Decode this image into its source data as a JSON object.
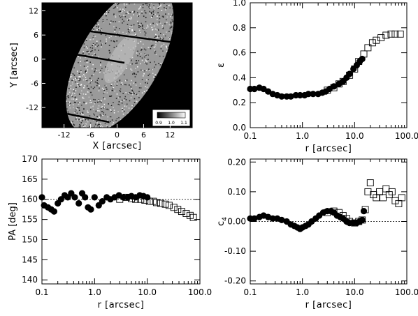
{
  "chart_data": [
    {
      "type": "image",
      "panel": "top-left",
      "xlabel": "X [arcsec]",
      "ylabel": "Y [arcsec]",
      "xlim": [
        -17,
        17
      ],
      "ylim": [
        -17,
        14
      ],
      "xticks": [
        -12,
        -6,
        0,
        6,
        12
      ],
      "yticks": [
        -12,
        -6,
        0,
        6,
        12
      ],
      "colorbar_ticks": [
        "0.9",
        "1.0",
        "1.1"
      ],
      "background_color": "#000000"
    },
    {
      "type": "scatter",
      "panel": "top-right",
      "xlabel": "r [arcsec]",
      "ylabel": "ε",
      "xscale": "log",
      "xlim": [
        0.1,
        100.0
      ],
      "ylim": [
        0.0,
        1.0
      ],
      "xticks": [
        "0.1",
        "1.0",
        "10.0",
        "100.0"
      ],
      "yticks": [
        "0.0",
        "0.2",
        "0.4",
        "0.6",
        "0.8",
        "1.0"
      ],
      "series": [
        {
          "marker": "filled-circle",
          "x": [
            0.1,
            0.12,
            0.15,
            0.18,
            0.22,
            0.27,
            0.33,
            0.4,
            0.5,
            0.6,
            0.75,
            0.9,
            1.1,
            1.3,
            1.6,
            2.0,
            2.4,
            2.8,
            3.3,
            4.0,
            5.0,
            6.0,
            7.0,
            8.0,
            9.5,
            11.0,
            12.5,
            14.0
          ],
          "y": [
            0.31,
            0.31,
            0.32,
            0.31,
            0.29,
            0.27,
            0.26,
            0.25,
            0.25,
            0.25,
            0.26,
            0.26,
            0.26,
            0.27,
            0.27,
            0.27,
            0.28,
            0.29,
            0.31,
            0.33,
            0.35,
            0.37,
            0.4,
            0.43,
            0.47,
            0.5,
            0.53,
            0.55
          ]
        },
        {
          "marker": "open-square",
          "x": [
            3.0,
            4.0,
            5.0,
            6.0,
            8.0,
            10.0,
            12.0,
            15.0,
            18.0,
            22.0,
            26.0,
            32.0,
            40.0,
            50.0,
            60.0,
            75.0
          ],
          "y": [
            0.3,
            0.32,
            0.35,
            0.37,
            0.42,
            0.47,
            0.53,
            0.59,
            0.64,
            0.68,
            0.7,
            0.72,
            0.74,
            0.75,
            0.75,
            0.75
          ]
        }
      ]
    },
    {
      "type": "scatter",
      "panel": "bottom-left",
      "xlabel": "r [arcsec]",
      "ylabel": "PA [deg]",
      "xscale": "log",
      "xlim": [
        0.1,
        100.0
      ],
      "ylim": [
        139,
        170
      ],
      "xticks": [
        "0.1",
        "1.0",
        "10.0",
        "100.0"
      ],
      "yticks": [
        "140",
        "145",
        "150",
        "155",
        "160",
        "165",
        "170"
      ],
      "reference_line": 160,
      "series": [
        {
          "marker": "filled-circle",
          "x": [
            0.1,
            0.11,
            0.13,
            0.15,
            0.17,
            0.2,
            0.23,
            0.27,
            0.31,
            0.36,
            0.42,
            0.5,
            0.58,
            0.66,
            0.75,
            0.85,
            1.0,
            1.2,
            1.4,
            1.7,
            2.0,
            2.4,
            2.9,
            3.5,
            4.2,
            5.0,
            6.0,
            7.2,
            8.5,
            10.0
          ],
          "y": [
            160.5,
            158.5,
            158.0,
            157.5,
            157.0,
            159.0,
            160.0,
            161.0,
            160.5,
            161.5,
            160.5,
            159.0,
            161.5,
            160.5,
            158.0,
            157.5,
            160.5,
            158.5,
            159.5,
            160.5,
            160.0,
            160.5,
            161.0,
            160.5,
            160.5,
            160.8,
            160.5,
            161.0,
            160.8,
            160.5
          ]
        },
        {
          "marker": "open-square",
          "x": [
            3.0,
            4.0,
            5.0,
            6.0,
            7.5,
            9.0,
            11.0,
            13.0,
            15.0,
            18.0,
            22.0,
            26.0,
            32.0,
            38.0,
            45.0,
            55.0,
            65.0,
            75.0
          ],
          "y": [
            160.0,
            160.5,
            160.2,
            160.0,
            160.0,
            159.8,
            159.5,
            159.5,
            159.2,
            159.0,
            158.8,
            158.5,
            158.0,
            157.5,
            157.0,
            156.5,
            156.0,
            155.5
          ]
        }
      ]
    },
    {
      "type": "scatter",
      "panel": "bottom-right",
      "xlabel": "r [arcsec]",
      "ylabel": "c4",
      "xscale": "log",
      "xlim": [
        0.1,
        100.0
      ],
      "ylim": [
        -0.21,
        0.21
      ],
      "xticks": [
        "0.1",
        "1.0",
        "10.0",
        "100.0"
      ],
      "yticks": [
        "-0.20",
        "-0.10",
        "0.00",
        "0.10",
        "0.20"
      ],
      "reference_line": 0.0,
      "series": [
        {
          "marker": "filled-circle",
          "x": [
            0.1,
            0.12,
            0.15,
            0.18,
            0.22,
            0.27,
            0.33,
            0.4,
            0.5,
            0.6,
            0.7,
            0.8,
            0.9,
            1.0,
            1.15,
            1.3,
            1.5,
            1.8,
            2.1,
            2.5,
            3.0,
            3.5,
            4.0,
            4.6,
            5.3,
            6.0,
            7.0,
            8.0,
            9.5,
            11.0,
            12.5,
            14.0,
            15.0
          ],
          "y": [
            0.01,
            0.01,
            0.015,
            0.02,
            0.015,
            0.01,
            0.01,
            0.005,
            0.0,
            -0.01,
            -0.015,
            -0.02,
            -0.025,
            -0.02,
            -0.015,
            -0.01,
            0.0,
            0.01,
            0.02,
            0.03,
            0.035,
            0.035,
            0.03,
            0.02,
            0.015,
            0.01,
            0.0,
            -0.005,
            -0.005,
            -0.005,
            0.0,
            0.005,
            0.035
          ]
        },
        {
          "marker": "open-square",
          "x": [
            3.0,
            4.0,
            5.0,
            6.0,
            7.0,
            8.0,
            10.0,
            12.0,
            14.0,
            16.0,
            18.0,
            20.0,
            23.0,
            26.0,
            30.0,
            35.0,
            40.0,
            46.0,
            52.0,
            60.0,
            70.0,
            80.0
          ],
          "y": [
            0.03,
            0.035,
            0.03,
            0.02,
            0.01,
            0.0,
            -0.005,
            0.0,
            0.005,
            0.04,
            0.1,
            0.13,
            0.09,
            0.08,
            0.1,
            0.08,
            0.11,
            0.09,
            0.1,
            0.07,
            0.06,
            0.08
          ]
        }
      ]
    }
  ]
}
